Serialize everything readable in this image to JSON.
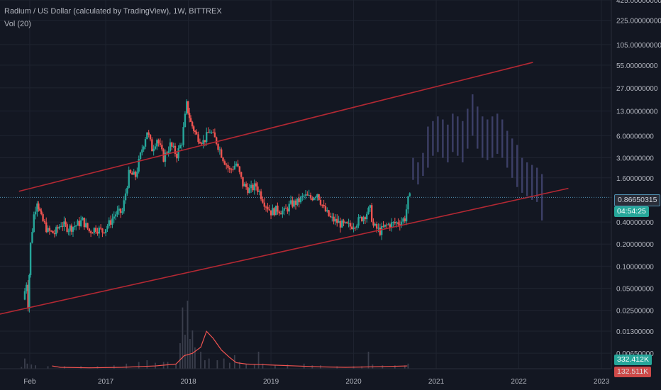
{
  "header": {
    "title": "Radium / US Dollar (calculated by TradingView), 1W, BITTREX",
    "volume_indicator": "Vol (20)"
  },
  "price_axis_labels": [
    "425.00000000",
    "225.00000000",
    "105.00000000",
    "55.00000000",
    "27.00000000",
    "13.00000000",
    "6.00000000",
    "3.00000000",
    "1.60000000",
    "0.40000000",
    "0.20000000",
    "0.10000000",
    "0.05000000",
    "0.02500000",
    "0.01300000",
    "0.00650000"
  ],
  "time_axis_labels": [
    "Feb",
    "2017",
    "2018",
    "2019",
    "2020",
    "2021",
    "2022",
    "2023"
  ],
  "current_price": "0.86650315",
  "countdown": "04:54:25",
  "volume_label": "332.412K",
  "volume_ma_label": "132.511K",
  "colors": {
    "background": "#131722",
    "up": "#26a69a",
    "down": "#ef5350",
    "channel": "#b22833",
    "projection": "#3c3f66",
    "grid": "#1f2430",
    "axis_text": "#b2b5be"
  },
  "chart_data": {
    "type": "candlestick",
    "title": "Radium / US Dollar (calculated by TradingView), 1W, BITTREX",
    "y_scale": "log",
    "ylim": [
      0.004,
      425
    ],
    "xlim": [
      2015.72,
      2023.12
    ],
    "x_ticks": [
      {
        "label": "Feb",
        "x": 2016.08
      },
      {
        "label": "2017",
        "x": 2017.0
      },
      {
        "label": "2018",
        "x": 2018.0
      },
      {
        "label": "2019",
        "x": 2019.0
      },
      {
        "label": "2020",
        "x": 2020.0
      },
      {
        "label": "2021",
        "x": 2021.0
      },
      {
        "label": "2022",
        "x": 2022.0
      },
      {
        "label": "2023",
        "x": 2023.0
      }
    ],
    "y_ticks": [
      425,
      225,
      105,
      55,
      27,
      13,
      6,
      3,
      1.6,
      0.4,
      0.2,
      0.1,
      0.05,
      0.025,
      0.013,
      0.0065
    ],
    "grid": true,
    "price_path": [
      [
        2016.0,
        0.035
      ],
      [
        2016.04,
        0.06
      ],
      [
        2016.06,
        0.03
      ],
      [
        2016.09,
        0.2
      ],
      [
        2016.13,
        0.5
      ],
      [
        2016.17,
        0.8
      ],
      [
        2016.22,
        0.45
      ],
      [
        2016.3,
        0.3
      ],
      [
        2016.38,
        0.28
      ],
      [
        2016.46,
        0.38
      ],
      [
        2016.55,
        0.33
      ],
      [
        2016.64,
        0.36
      ],
      [
        2016.72,
        0.42
      ],
      [
        2016.8,
        0.3
      ],
      [
        2016.88,
        0.33
      ],
      [
        2016.96,
        0.3
      ],
      [
        2017.04,
        0.38
      ],
      [
        2017.12,
        0.52
      ],
      [
        2017.2,
        0.55
      ],
      [
        2017.28,
        1.8
      ],
      [
        2017.36,
        1.7
      ],
      [
        2017.44,
        4.0
      ],
      [
        2017.5,
        7.0
      ],
      [
        2017.56,
        4.0
      ],
      [
        2017.62,
        5.5
      ],
      [
        2017.7,
        3.0
      ],
      [
        2017.78,
        4.5
      ],
      [
        2017.86,
        3.3
      ],
      [
        2017.92,
        5.0
      ],
      [
        2017.98,
        16.0
      ],
      [
        2018.03,
        9.0
      ],
      [
        2018.1,
        6.0
      ],
      [
        2018.18,
        5.0
      ],
      [
        2018.26,
        7.0
      ],
      [
        2018.34,
        5.0
      ],
      [
        2018.42,
        3.0
      ],
      [
        2018.5,
        2.0
      ],
      [
        2018.58,
        2.5
      ],
      [
        2018.66,
        1.3
      ],
      [
        2018.74,
        1.1
      ],
      [
        2018.82,
        1.25
      ],
      [
        2018.92,
        0.75
      ],
      [
        2019.0,
        0.55
      ],
      [
        2019.08,
        0.6
      ],
      [
        2019.16,
        0.55
      ],
      [
        2019.24,
        0.7
      ],
      [
        2019.32,
        0.75
      ],
      [
        2019.4,
        0.9
      ],
      [
        2019.48,
        0.85
      ],
      [
        2019.56,
        1.0
      ],
      [
        2019.64,
        0.6
      ],
      [
        2019.72,
        0.45
      ],
      [
        2019.8,
        0.4
      ],
      [
        2019.88,
        0.36
      ],
      [
        2019.96,
        0.35
      ],
      [
        2020.04,
        0.4
      ],
      [
        2020.12,
        0.48
      ],
      [
        2020.2,
        0.6
      ],
      [
        2020.24,
        0.35
      ],
      [
        2020.32,
        0.3
      ],
      [
        2020.4,
        0.36
      ],
      [
        2020.48,
        0.38
      ],
      [
        2020.56,
        0.4
      ],
      [
        2020.62,
        0.45
      ],
      [
        2020.66,
        0.8
      ],
      [
        2020.68,
        0.87
      ]
    ],
    "projection_bars": [
      [
        2020.72,
        1.5,
        3.0
      ],
      [
        2020.78,
        1.3,
        2.6
      ],
      [
        2020.84,
        1.7,
        3.5
      ],
      [
        2020.9,
        2.2,
        8.0
      ],
      [
        2020.96,
        3.2,
        9.5
      ],
      [
        2021.02,
        3.6,
        11.0
      ],
      [
        2021.08,
        3.0,
        10.0
      ],
      [
        2021.14,
        2.6,
        8.5
      ],
      [
        2021.2,
        3.6,
        12.0
      ],
      [
        2021.26,
        3.2,
        11.0
      ],
      [
        2021.32,
        2.6,
        9.5
      ],
      [
        2021.38,
        4.0,
        14.0
      ],
      [
        2021.44,
        6.0,
        22.0
      ],
      [
        2021.5,
        4.0,
        15.0
      ],
      [
        2021.56,
        3.0,
        11.0
      ],
      [
        2021.62,
        2.8,
        10.0
      ],
      [
        2021.68,
        3.0,
        11.0
      ],
      [
        2021.74,
        3.4,
        12.0
      ],
      [
        2021.8,
        3.0,
        10.0
      ],
      [
        2021.86,
        2.2,
        7.0
      ],
      [
        2021.92,
        1.6,
        5.5
      ],
      [
        2021.98,
        1.2,
        4.5
      ],
      [
        2022.04,
        1.0,
        3.0
      ],
      [
        2022.1,
        0.9,
        2.6
      ],
      [
        2022.16,
        0.8,
        2.4
      ],
      [
        2022.22,
        0.75,
        2.2
      ],
      [
        2022.28,
        0.42,
        1.8
      ]
    ],
    "channel_lines": [
      {
        "name": "upper",
        "from": [
          2015.95,
          1.05
        ],
        "to": [
          2022.17,
          60.0
        ]
      },
      {
        "name": "lower",
        "from": [
          2015.7,
          0.022
        ],
        "to": [
          2022.6,
          1.15
        ]
      }
    ],
    "current_price": 0.8665,
    "volume": {
      "label": "Vol (20)",
      "bars": [
        [
          2015.98,
          0.02
        ],
        [
          2016.02,
          0.12
        ],
        [
          2016.05,
          0.06
        ],
        [
          2016.1,
          0.05
        ],
        [
          2016.15,
          0.04
        ],
        [
          2016.3,
          0.03
        ],
        [
          2016.5,
          0.03
        ],
        [
          2016.7,
          0.03
        ],
        [
          2016.9,
          0.03
        ],
        [
          2017.1,
          0.04
        ],
        [
          2017.25,
          0.06
        ],
        [
          2017.4,
          0.08
        ],
        [
          2017.5,
          0.1
        ],
        [
          2017.6,
          0.07
        ],
        [
          2017.7,
          0.08
        ],
        [
          2017.75,
          0.08
        ],
        [
          2017.85,
          0.05
        ],
        [
          2017.9,
          0.3
        ],
        [
          2017.93,
          0.72
        ],
        [
          2017.96,
          0.4
        ],
        [
          2017.99,
          0.8
        ],
        [
          2018.02,
          0.35
        ],
        [
          2018.05,
          0.45
        ],
        [
          2018.08,
          0.25
        ],
        [
          2018.15,
          0.2
        ],
        [
          2018.2,
          0.1
        ],
        [
          2018.25,
          0.12
        ],
        [
          2018.35,
          0.1
        ],
        [
          2018.43,
          0.12
        ],
        [
          2018.5,
          0.07
        ],
        [
          2018.56,
          0.16
        ],
        [
          2018.62,
          0.08
        ],
        [
          2018.7,
          0.06
        ],
        [
          2018.8,
          0.05
        ],
        [
          2018.85,
          0.2
        ],
        [
          2018.9,
          0.06
        ],
        [
          2019.05,
          0.04
        ],
        [
          2019.2,
          0.05
        ],
        [
          2019.4,
          0.06
        ],
        [
          2019.5,
          0.04
        ],
        [
          2019.6,
          0.04
        ],
        [
          2019.8,
          0.03
        ],
        [
          2020.0,
          0.03
        ],
        [
          2020.1,
          0.03
        ],
        [
          2020.18,
          0.2
        ],
        [
          2020.23,
          0.05
        ],
        [
          2020.35,
          0.04
        ],
        [
          2020.5,
          0.04
        ],
        [
          2020.62,
          0.04
        ],
        [
          2020.66,
          0.06
        ]
      ],
      "ma": [
        [
          2016.35,
          0.06
        ],
        [
          2016.45,
          0.03
        ],
        [
          2016.8,
          0.02
        ],
        [
          2017.2,
          0.03
        ],
        [
          2017.6,
          0.06
        ],
        [
          2017.85,
          0.1
        ],
        [
          2017.95,
          0.28
        ],
        [
          2018.05,
          0.33
        ],
        [
          2018.15,
          0.46
        ],
        [
          2018.22,
          0.8
        ],
        [
          2018.3,
          0.65
        ],
        [
          2018.4,
          0.4
        ],
        [
          2018.5,
          0.24
        ],
        [
          2018.58,
          0.13
        ],
        [
          2018.7,
          0.1
        ],
        [
          2018.85,
          0.09
        ],
        [
          2019.0,
          0.08
        ],
        [
          2019.3,
          0.06
        ],
        [
          2019.6,
          0.04
        ],
        [
          2019.9,
          0.03
        ],
        [
          2020.2,
          0.04
        ],
        [
          2020.45,
          0.05
        ],
        [
          2020.65,
          0.06
        ]
      ]
    }
  }
}
